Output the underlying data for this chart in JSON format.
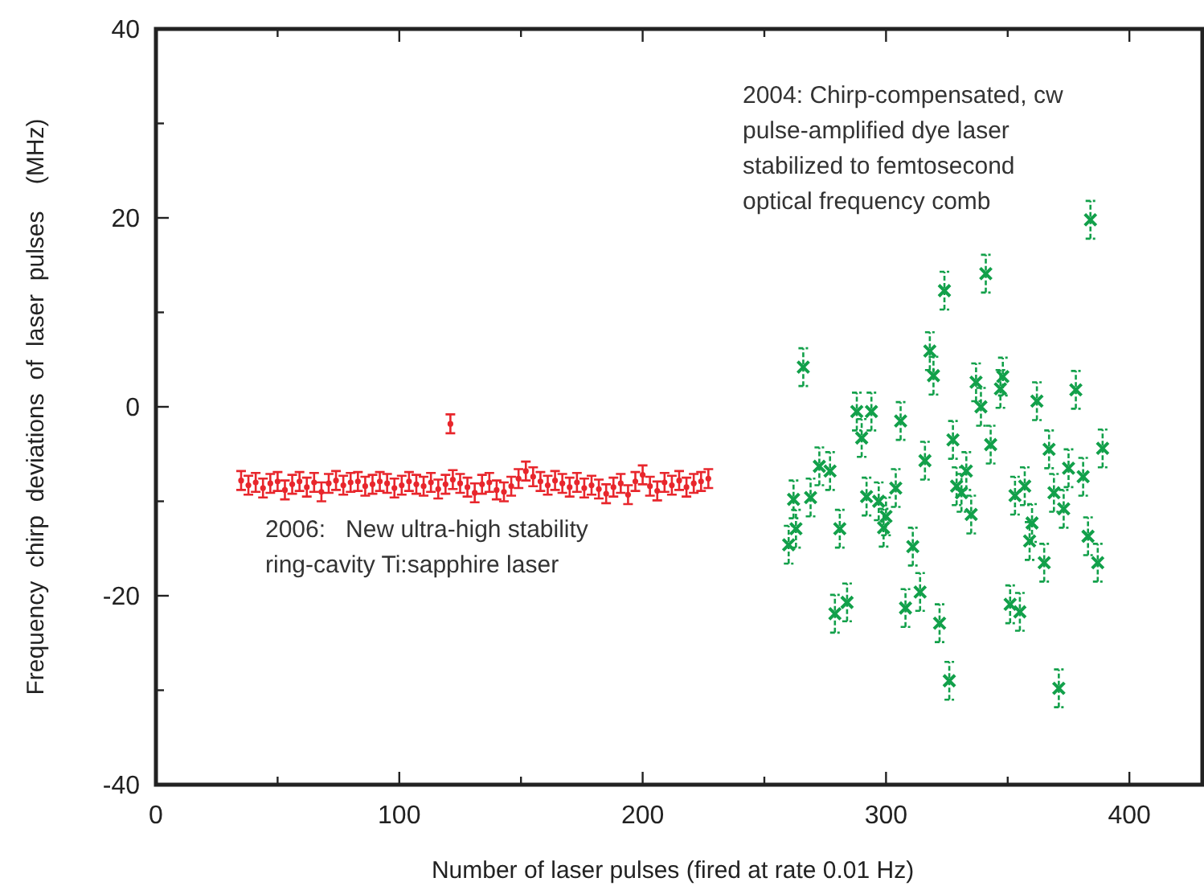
{
  "chart_data": {
    "type": "scatter",
    "xlabel": "Number of laser pulses (fired at rate 0.01 Hz)",
    "ylabel": "Frequency  chirp  deviations  of  laser  pulses    (MHz)",
    "xlim": [
      0,
      430
    ],
    "ylim": [
      -40,
      40
    ],
    "xticks": [
      0,
      {
        "value": 50,
        "label": null
      },
      100,
      {
        "value": 150,
        "label": null
      },
      200,
      {
        "value": 250,
        "label": null
      },
      300,
      {
        "value": 350,
        "label": null
      },
      400
    ],
    "yticks": [
      -40,
      {
        "value": -30,
        "label": null
      },
      -20,
      {
        "value": -10,
        "label": null
      },
      0,
      {
        "value": 10,
        "label": null
      },
      20,
      {
        "value": 30,
        "label": null
      },
      40
    ],
    "grid": false,
    "annotations": [
      "2004: Chirp-compensated, cw\npulse-amplified dye laser\nstabilized to femtosecond\noptical frequency comb",
      "2006:   New ultra-high stability\nring-cavity Ti:sapphire laser"
    ],
    "series": [
      {
        "color": "#e8262c",
        "marker": "circle",
        "x": [
          35,
          38,
          41,
          44,
          47,
          50,
          53,
          56,
          59,
          62,
          65,
          68,
          71,
          74,
          77,
          80,
          83,
          86,
          89,
          92,
          95,
          98,
          101,
          104,
          107,
          110,
          113,
          116,
          119,
          121,
          122,
          125,
          128,
          131,
          134,
          137,
          140,
          143,
          146,
          149,
          152,
          155,
          158,
          161,
          164,
          167,
          170,
          173,
          176,
          179,
          182,
          185,
          188,
          191,
          194,
          197,
          200,
          203,
          206,
          209,
          212,
          215,
          218,
          221,
          224,
          227
        ],
        "values": [
          -7.8,
          -8.3,
          -8.0,
          -8.6,
          -8.1,
          -7.9,
          -8.8,
          -8.2,
          -7.9,
          -8.5,
          -8.0,
          -9.0,
          -8.1,
          -7.8,
          -8.3,
          -8.0,
          -7.9,
          -8.4,
          -8.2,
          -7.9,
          -8.1,
          -8.6,
          -8.3,
          -7.9,
          -8.2,
          -8.4,
          -8.0,
          -8.7,
          -8.2,
          -1.8,
          -7.7,
          -8.1,
          -8.5,
          -9.1,
          -8.2,
          -8.0,
          -8.8,
          -9.0,
          -8.4,
          -7.6,
          -6.8,
          -7.4,
          -7.9,
          -8.3,
          -7.8,
          -8.1,
          -8.5,
          -8.0,
          -8.6,
          -8.3,
          -8.7,
          -9.2,
          -8.5,
          -8.1,
          -9.3,
          -7.9,
          -7.2,
          -8.4,
          -8.9,
          -8.0,
          -8.3,
          -7.8,
          -8.5,
          -8.1,
          -7.9,
          -7.6
        ],
        "errors": [
          1,
          1,
          1,
          1,
          1,
          1,
          1,
          1,
          1,
          1,
          1,
          1,
          1,
          1,
          1,
          1,
          1,
          1,
          1,
          1,
          1,
          1,
          1,
          1,
          1,
          1,
          1,
          1,
          1,
          1,
          1,
          1,
          1,
          1,
          1,
          1,
          1,
          1,
          1,
          1,
          1,
          1,
          1,
          1,
          1,
          1,
          1,
          1,
          1,
          1,
          1,
          1,
          1,
          1,
          1,
          1,
          1,
          1,
          1,
          1,
          1,
          1,
          1,
          1,
          1,
          1
        ]
      },
      {
        "color": "#12a04a",
        "marker": "cross",
        "x": [
          384,
          341,
          324,
          266,
          318,
          319.5,
          337,
          348,
          347,
          339,
          362,
          378,
          288,
          294,
          306,
          290,
          327.5,
          343,
          367,
          389,
          316,
          272.6,
          277,
          333,
          375,
          357,
          329,
          304,
          381,
          269,
          262,
          292,
          297,
          353,
          369,
          331,
          300,
          335,
          373,
          360,
          263,
          281,
          299,
          260,
          311,
          359,
          383,
          365,
          387,
          314,
          279,
          284,
          308,
          322,
          351,
          355,
          326,
          371
        ],
        "values": [
          19.8,
          14.1,
          12.3,
          4.2,
          5.9,
          3.3,
          2.6,
          3.2,
          1.9,
          0,
          0.6,
          1.8,
          -0.5,
          -0.5,
          -1.5,
          -3.3,
          -3.5,
          -4.0,
          -4.5,
          -4.4,
          -5.7,
          -6.3,
          -6.8,
          -6.8,
          -6.5,
          -8.4,
          -8.4,
          -8.6,
          -7.4,
          -9.6,
          -9.8,
          -9.5,
          -10.0,
          -9.4,
          -9.1,
          -9.1,
          -11.6,
          -11.4,
          -10.8,
          -12.3,
          -12.9,
          -12.9,
          -12.8,
          -14.6,
          -14.8,
          -14.2,
          -13.7,
          -16.5,
          -16.5,
          -19.6,
          -21.9,
          -20.7,
          -21.3,
          -22.9,
          -20.9,
          -21.7,
          -29.0,
          -29.8
        ],
        "errors": [
          2,
          2,
          2,
          2,
          2,
          2,
          2,
          2,
          2,
          2,
          2,
          2,
          2,
          2,
          2,
          2,
          2,
          2,
          2,
          2,
          2,
          2,
          2,
          2,
          2,
          2,
          2,
          2,
          2,
          2,
          2,
          2,
          2,
          2,
          2,
          2,
          2,
          2,
          2,
          2,
          2,
          2,
          2,
          2,
          2,
          2,
          2,
          2,
          2,
          2,
          2,
          2,
          2,
          2,
          2,
          2,
          2,
          2
        ]
      }
    ]
  }
}
